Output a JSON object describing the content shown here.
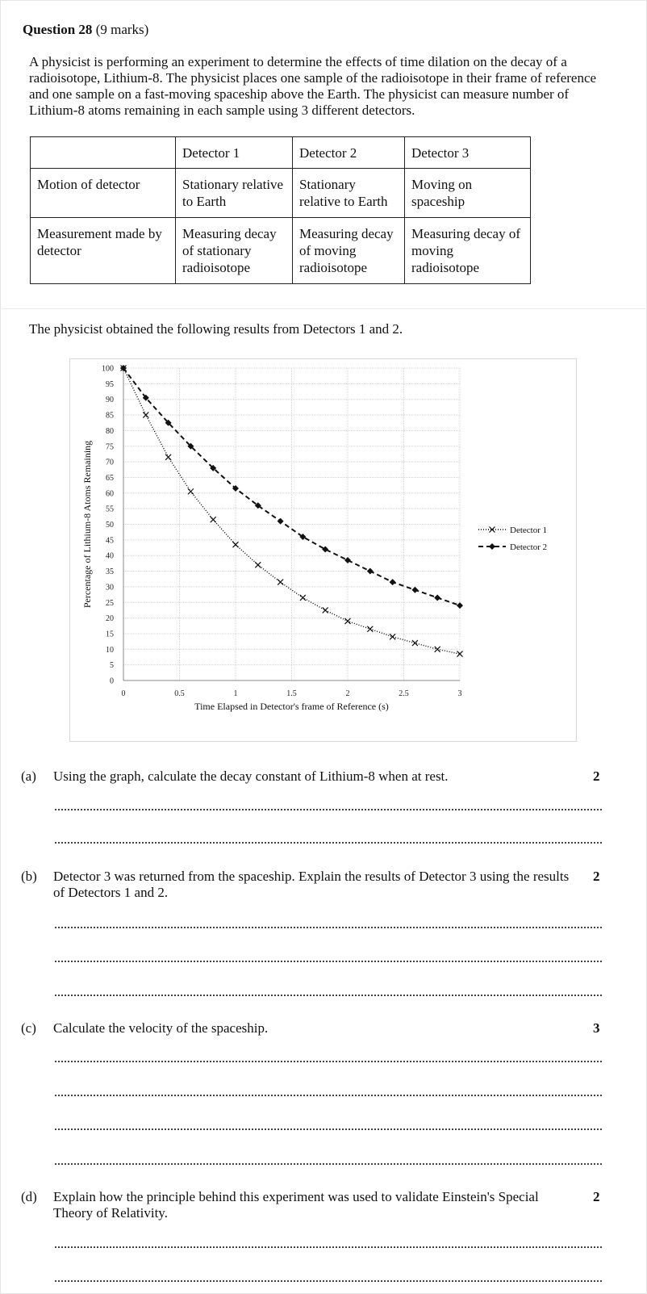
{
  "question": {
    "title_bold": "Question 28",
    "title_rest": "(9 marks)",
    "intro": "A physicist is performing an experiment to determine the effects of time dilation on the decay of a radioisotope, Lithium-8. The physicist places one sample of the radioisotope in their frame of reference and one sample on a fast-moving spaceship above the Earth. The physicist can measure number of Lithium-8 atoms remaining in each sample using 3 different detectors."
  },
  "table": {
    "headers": [
      "",
      "Detector 1",
      "Detector 2",
      "Detector 3"
    ],
    "rows": [
      [
        "Motion of detector",
        "Stationary relative to Earth",
        "Stationary relative to Earth",
        "Moving on spaceship"
      ],
      [
        "Measurement made by detector",
        "Measuring decay of stationary radioisotope",
        "Measuring decay of moving radioisotope",
        "Measuring decay of moving radioisotope"
      ]
    ]
  },
  "results_text": "The physicist obtained the following results from Detectors 1 and 2.",
  "chart_data": {
    "type": "line",
    "xlabel": "Time Elapsed in Detector's frame of Reference (s)",
    "ylabel": "Percentage of Lithium-8 Atoms Remaining",
    "xlim": [
      0,
      3
    ],
    "ylim": [
      0,
      100
    ],
    "x_ticks": [
      "0",
      "0.5",
      "1",
      "1.5",
      "2",
      "2.5",
      "3"
    ],
    "y_ticks": [
      "0",
      "5",
      "10",
      "15",
      "20",
      "25",
      "30",
      "35",
      "40",
      "45",
      "50",
      "55",
      "60",
      "65",
      "70",
      "75",
      "80",
      "85",
      "90",
      "95",
      "100"
    ],
    "grid": true,
    "legend": "right",
    "series": [
      {
        "name": "Detector 1",
        "style": "dotted",
        "marker": "x",
        "x": [
          0,
          0.2,
          0.4,
          0.6,
          0.8,
          1.0,
          1.2,
          1.4,
          1.6,
          1.8,
          2.0,
          2.2,
          2.4,
          2.6,
          2.8,
          3.0
        ],
        "values": [
          100,
          85,
          71.5,
          60.5,
          51.5,
          43.5,
          37,
          31.5,
          26.5,
          22.5,
          19,
          16.5,
          14,
          12,
          10,
          8.5
        ]
      },
      {
        "name": "Detector 2",
        "style": "dashed",
        "marker": "diamond",
        "x": [
          0,
          0.2,
          0.4,
          0.6,
          0.8,
          1.0,
          1.2,
          1.4,
          1.6,
          1.8,
          2.0,
          2.2,
          2.4,
          2.6,
          2.8,
          3.0
        ],
        "values": [
          100,
          90.5,
          82.5,
          75,
          68,
          61.5,
          56,
          51,
          46,
          42,
          38.5,
          35,
          31.5,
          29,
          26.5,
          24
        ]
      }
    ]
  },
  "parts": [
    {
      "label": "(a)",
      "text": "Using the graph, calculate the decay constant of Lithium-8 when at rest.",
      "marks": "2"
    },
    {
      "label": "(b)",
      "text": "Detector 3 was returned from the spaceship. Explain the results of Detector 3 using the results of Detectors 1 and 2.",
      "marks": "2"
    },
    {
      "label": "(c)",
      "text": "Calculate the velocity of the spaceship.",
      "marks": "3"
    },
    {
      "label": "(d)",
      "text": "Explain how the principle behind this experiment was used to validate Einstein's Special Theory of Relativity.",
      "marks": "2"
    }
  ]
}
